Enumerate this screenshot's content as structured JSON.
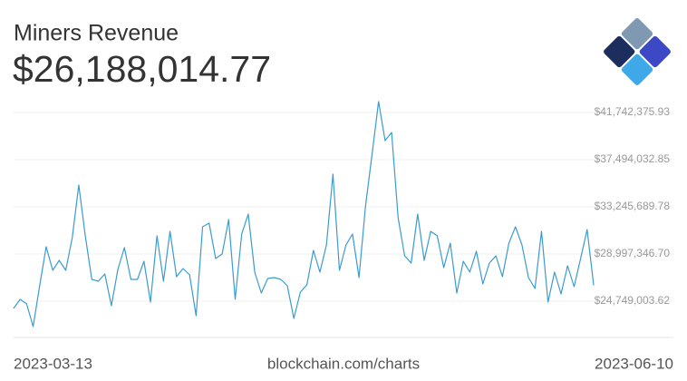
{
  "chart_data": {
    "type": "line",
    "title": "Miners Revenue",
    "current_value": "$26,188,014.77",
    "source": "blockchain.com/charts",
    "categories": [
      "2023-03-13",
      null,
      null,
      null,
      null,
      null,
      null,
      null,
      null,
      null,
      null,
      null,
      null,
      null,
      null,
      null,
      null,
      null,
      null,
      null,
      null,
      null,
      null,
      null,
      null,
      null,
      null,
      null,
      null,
      null,
      null,
      null,
      null,
      null,
      null,
      null,
      null,
      null,
      null,
      null,
      null,
      null,
      null,
      null,
      null,
      null,
      null,
      null,
      null,
      null,
      null,
      null,
      null,
      null,
      null,
      null,
      null,
      null,
      null,
      null,
      null,
      null,
      null,
      null,
      null,
      null,
      null,
      null,
      null,
      null,
      null,
      null,
      null,
      null,
      null,
      null,
      null,
      null,
      null,
      null,
      null,
      null,
      null,
      null,
      null,
      null,
      null,
      null,
      null,
      "2023-06-10"
    ],
    "values": [
      24095000,
      24912000,
      24504000,
      22461000,
      26138000,
      29651000,
      27527000,
      28425000,
      27527000,
      30468000,
      35206000,
      30631000,
      26710000,
      26546000,
      27200000,
      24341000,
      27608000,
      29569000,
      26710000,
      26710000,
      28344000,
      24667000,
      30631000,
      26546000,
      31040000,
      26955000,
      27690000,
      27118000,
      23442000,
      31448000,
      31775000,
      28589000,
      28997000,
      32102000,
      24912000,
      30795000,
      32592000,
      27363000,
      25484000,
      26791000,
      26873000,
      26710000,
      26138000,
      23197000,
      25566000,
      26220000,
      29324000,
      27363000,
      29814000,
      36187000,
      27527000,
      29814000,
      30795000,
      26873000,
      33327000,
      37984000,
      42723000,
      39210000,
      39945000,
      32265000,
      28834000,
      28180000,
      32592000,
      28425000,
      31040000,
      30631000,
      27772000,
      29978000,
      25484000,
      28344000,
      27363000,
      29242000,
      26301000,
      28180000,
      28834000,
      26955000,
      29978000,
      31448000,
      29814000,
      26873000,
      25893000,
      31040000,
      24667000,
      27363000,
      25403000,
      27935000,
      26056000,
      28589000,
      31203000,
      26188014.77
    ],
    "color": "#3a9bd0",
    "ylim": [
      21644446,
      43376353
    ],
    "yticks": [
      {
        "value": 24749003.62,
        "label": "$24,749,003.62"
      },
      {
        "value": 28997346.7,
        "label": "$28,997,346.70"
      },
      {
        "value": 33245689.78,
        "label": "$33,245,689.78"
      },
      {
        "value": 37494032.85,
        "label": "$37,494,032.85"
      },
      {
        "value": 41742375.93,
        "label": "$41,742,375.93"
      }
    ],
    "grid": true
  }
}
